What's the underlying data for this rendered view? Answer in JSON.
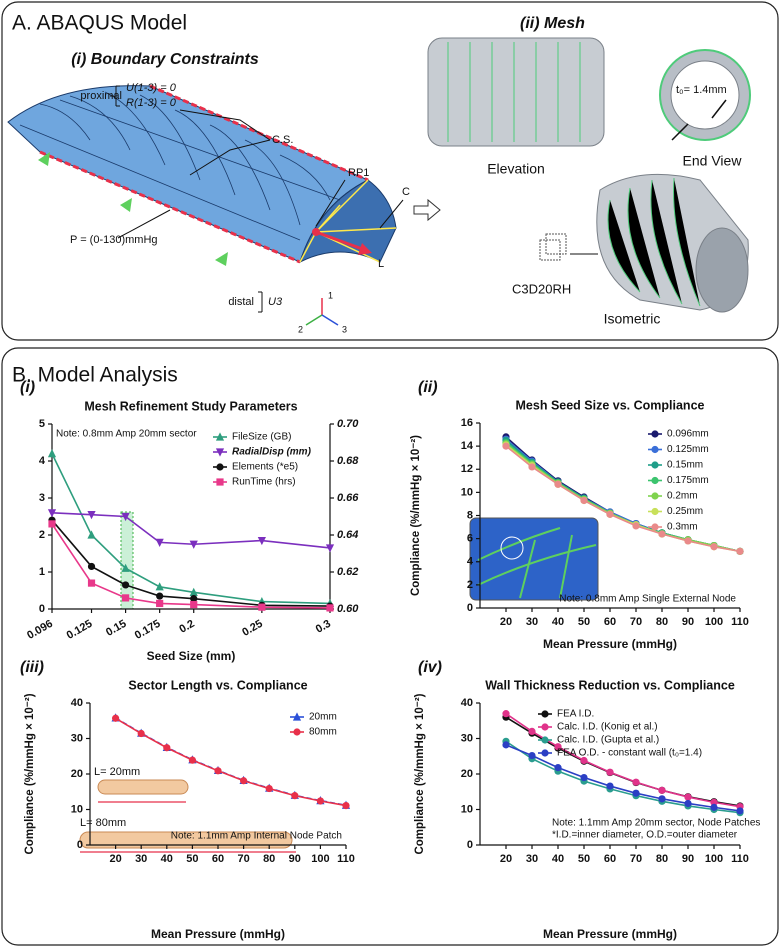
{
  "panel_a": {
    "title": "A. ABAQUS Model",
    "sub_i": "(i) Boundary Constraints",
    "sub_ii": "(ii) Mesh",
    "proximal": "proximal",
    "u13": "U(1-3) = 0",
    "r13": "R(1-3) = 0",
    "cs": "C.S.",
    "rp1": "RP1",
    "c": "C",
    "pressure": "P = (0-130)mmHg",
    "l": "L",
    "distal": "distal",
    "u3": "U3",
    "ax1": "1",
    "ax2": "2",
    "ax3": "3",
    "elevation": "Elevation",
    "end_view": "End View",
    "thickness": "t₀= 1.4mm",
    "element": "C3D20RH",
    "isometric": "Isometric"
  },
  "panel_b": {
    "title": "B. Model Analysis"
  },
  "chart_data": [
    {
      "type": "line",
      "label": "(i)",
      "title": "Mesh Refinement Study Parameters",
      "note": "Note: 0.8mm Amp 20mm sector",
      "x_label": "Seed Size (mm)",
      "x": [
        0.096,
        0.125,
        0.15,
        0.175,
        0.2,
        0.25,
        0.3
      ],
      "xlim": [
        0.096,
        0.3
      ],
      "xticks": [
        0.096,
        0.125,
        0.15,
        0.175,
        0.2,
        0.25,
        0.3
      ],
      "ylim": [
        0,
        5
      ],
      "yticks": [
        0,
        1,
        2,
        3,
        4,
        5
      ],
      "y2lim": [
        0.6,
        0.7
      ],
      "y2ticks": [
        {
          "value": 0.6,
          "label": "0.60"
        },
        0.62,
        0.64,
        0.66,
        0.68,
        {
          "value": 0.7,
          "label": "0.70"
        }
      ],
      "legend": "upper right",
      "series": [
        {
          "name": "FileSize (GB)",
          "color": "#2e9e7e",
          "marker": "triangle-up",
          "values": [
            4.2,
            2.0,
            1.1,
            0.6,
            0.45,
            0.2,
            0.15
          ]
        },
        {
          "name": "RadialDisp (mm)",
          "color": "#7b2fbe",
          "marker": "triangle-down",
          "axis": "y2",
          "values": [
            0.652,
            0.651,
            0.65,
            0.636,
            0.635,
            0.637,
            0.633
          ]
        },
        {
          "name": "Elements (*e5)",
          "color": "#111111",
          "marker": "circle",
          "values": [
            2.4,
            1.15,
            0.65,
            0.35,
            0.28,
            0.1,
            0.08
          ]
        },
        {
          "name": "RunTime (hrs)",
          "color": "#e8388a",
          "marker": "square",
          "values": [
            2.3,
            0.7,
            0.3,
            0.15,
            0.12,
            0.05,
            0.03
          ]
        }
      ]
    },
    {
      "type": "line",
      "label": "(ii)",
      "title": "Mesh Seed Size vs. Compliance",
      "note": "Note: 0.8mm Amp Single External Node",
      "x_label": "Mean Pressure (mmHg)",
      "y_label": "Compliance (%/mmHg × 10⁻²)",
      "x": [
        20,
        30,
        40,
        50,
        60,
        70,
        80,
        90,
        100,
        110
      ],
      "xlim": [
        10,
        110
      ],
      "xticks": [
        20,
        30,
        40,
        50,
        60,
        70,
        80,
        90,
        100,
        110
      ],
      "ylim": [
        0,
        16
      ],
      "yticks": [
        0,
        2,
        4,
        6,
        8,
        10,
        12,
        14,
        16
      ],
      "legend": "upper right",
      "series": [
        {
          "name": "0.096mm",
          "color": "#1a1a6e",
          "marker": "circle",
          "values": [
            14.8,
            12.8,
            11.0,
            9.6,
            8.3,
            7.3,
            6.5,
            5.9,
            5.4,
            4.9
          ]
        },
        {
          "name": "0.125mm",
          "color": "#3a6fd8",
          "marker": "circle",
          "values": [
            14.6,
            12.7,
            10.9,
            9.5,
            8.3,
            7.3,
            6.5,
            5.9,
            5.4,
            4.9
          ]
        },
        {
          "name": "0.15mm",
          "color": "#1f9e89",
          "marker": "circle",
          "values": [
            14.5,
            12.6,
            10.9,
            9.5,
            8.2,
            7.2,
            6.5,
            5.9,
            5.4,
            4.9
          ]
        },
        {
          "name": "0.175mm",
          "color": "#3cc46e",
          "marker": "circle",
          "values": [
            14.3,
            12.5,
            10.8,
            9.4,
            8.2,
            7.2,
            6.5,
            5.9,
            5.4,
            4.9
          ]
        },
        {
          "name": "0.2mm",
          "color": "#7fd34e",
          "marker": "circle",
          "values": [
            14.2,
            12.4,
            10.8,
            9.4,
            8.2,
            7.2,
            6.4,
            5.9,
            5.4,
            4.9
          ]
        },
        {
          "name": "0.25mm",
          "color": "#c8e05a",
          "marker": "circle",
          "values": [
            14.1,
            12.3,
            10.7,
            9.3,
            8.1,
            7.2,
            6.4,
            5.8,
            5.3,
            4.9
          ]
        },
        {
          "name": "0.3mm",
          "color": "#e98a8a",
          "marker": "circle",
          "values": [
            14.0,
            12.2,
            10.7,
            9.3,
            8.1,
            7.1,
            6.4,
            5.8,
            5.3,
            4.9
          ]
        }
      ]
    },
    {
      "type": "line",
      "label": "(iii)",
      "title": "Sector Length vs. Compliance",
      "note": "Note: 1.1mm Amp Internal Node Patch",
      "annotations": [
        "L= 20mm",
        "L= 80mm"
      ],
      "x_label": "Mean  Pressure (mmHg)",
      "y_label": "Compliance (%/mmHg × 10⁻²)",
      "x": [
        20,
        30,
        40,
        50,
        60,
        70,
        80,
        90,
        100,
        110
      ],
      "xlim": [
        10,
        110
      ],
      "xticks": [
        20,
        30,
        40,
        50,
        60,
        70,
        80,
        90,
        100,
        110
      ],
      "ylim": [
        0,
        40
      ],
      "yticks": [
        0,
        10,
        20,
        30,
        40
      ],
      "legend": "upper right",
      "series": [
        {
          "name": "20mm",
          "color": "#2b50d8",
          "marker": "triangle-up",
          "dashed": true,
          "values": [
            35.8,
            31.5,
            27.5,
            24.0,
            21.0,
            18.2,
            16.0,
            14.0,
            12.5,
            11.2
          ]
        },
        {
          "name": "80mm",
          "color": "#e8304a",
          "marker": "circle",
          "values": [
            35.7,
            31.4,
            27.4,
            23.9,
            20.9,
            18.1,
            15.9,
            13.9,
            12.4,
            11.1
          ]
        }
      ]
    },
    {
      "type": "line",
      "label": "(iv)",
      "title": "Wall Thickness Reduction vs. Compliance",
      "notes": [
        "Note: 1.1mm Amp 20mm sector, Node Patches",
        "*I.D.=inner diameter, O.D.=outer diameter"
      ],
      "x_label": "Mean Pressure (mmHg)",
      "y_label": "Compliance (%/mmHg × 10⁻²)",
      "x": [
        20,
        30,
        40,
        50,
        60,
        70,
        80,
        90,
        100,
        110
      ],
      "xlim": [
        10,
        110
      ],
      "xticks": [
        20,
        30,
        40,
        50,
        60,
        70,
        80,
        90,
        100,
        110
      ],
      "ylim": [
        0,
        40
      ],
      "yticks": [
        0,
        10,
        20,
        30,
        40
      ],
      "legend": "upper right",
      "series": [
        {
          "name": "FEA I.D.",
          "color": "#111111",
          "marker": "circle",
          "values": [
            36.0,
            31.5,
            27.3,
            23.6,
            20.4,
            17.6,
            15.4,
            13.6,
            12.2,
            11.0
          ]
        },
        {
          "name": "Calc. I.D. (Konig et al.)",
          "color": "#e0338a",
          "marker": "circle",
          "values": [
            37.0,
            32.0,
            27.7,
            23.8,
            20.5,
            17.7,
            15.4,
            13.5,
            12.0,
            10.8
          ]
        },
        {
          "name": "Calc. I.D. (Gupta et al.)",
          "color": "#2a9d8f",
          "marker": "circle",
          "values": [
            29.2,
            24.3,
            20.8,
            18.0,
            15.8,
            13.9,
            12.3,
            11.0,
            10.0,
            9.1
          ]
        },
        {
          "name": "FEA O.D. - constant wall (t₀=1.4)",
          "color": "#2b3fc4",
          "marker": "circle",
          "values": [
            28.2,
            25.2,
            21.8,
            19.0,
            16.6,
            14.6,
            13.0,
            11.7,
            10.6,
            9.6
          ]
        }
      ]
    }
  ]
}
